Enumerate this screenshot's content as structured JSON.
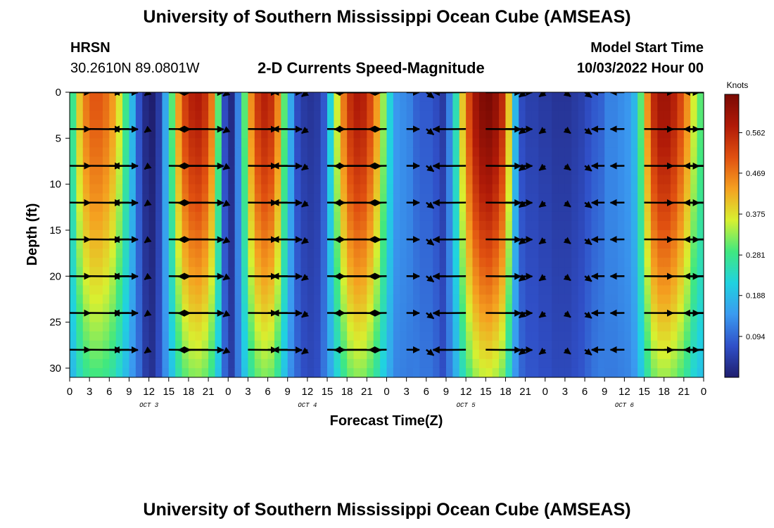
{
  "header": {
    "title": "University of Southern Mississippi Ocean Cube (AMSEAS)",
    "station": "HRSN",
    "coords": "30.2610N  89.0801W",
    "subtitle": "2-D Currents Speed-Magnitude",
    "model_start_label": "Model Start Time",
    "model_start_value": "10/03/2022 Hour 00",
    "footer_title": "University of Southern Mississippi Ocean Cube (AMSEAS)"
  },
  "chart_data": {
    "type": "heatmap",
    "title": "2-D Currents Speed-Magnitude",
    "xlabel": "Forecast Time(Z)",
    "ylabel": "Depth (ft)",
    "xlim": [
      0,
      96
    ],
    "ylim": [
      31,
      0
    ],
    "x_tick_labels": [
      "0",
      "3",
      "6",
      "9",
      "12",
      "15",
      "18",
      "21",
      "0",
      "3",
      "6",
      "9",
      "12",
      "15",
      "18",
      "21",
      "0",
      "3",
      "6",
      "9",
      "12",
      "15",
      "18",
      "21",
      "0",
      "3",
      "6",
      "9",
      "12",
      "15",
      "18",
      "21",
      "0"
    ],
    "y_ticks": [
      0,
      5,
      10,
      15,
      20,
      25,
      30
    ],
    "day_labels": [
      {
        "text": "OCT 3",
        "hour": 12
      },
      {
        "text": "OCT 4",
        "hour": 36
      },
      {
        "text": "OCT 5",
        "hour": 60
      },
      {
        "text": "OCT 6",
        "hour": 84
      }
    ],
    "colorbar": {
      "unit": "Knots",
      "ticks": [
        0.562,
        0.469,
        0.375,
        0.281,
        0.188,
        0.094
      ],
      "range": [
        0.0,
        0.65
      ],
      "colors": [
        "#1f1e6e",
        "#3050c8",
        "#3a9af0",
        "#20d2e0",
        "#40e880",
        "#d8f030",
        "#f5a020",
        "#e05010",
        "#b01a08",
        "#7a0a04"
      ]
    },
    "speed_by_hour_surface": [
      0.28,
      0.4,
      0.47,
      0.5,
      0.5,
      0.48,
      0.44,
      0.37,
      0.28,
      0.18,
      0.09,
      0.02,
      0.0,
      0.05,
      0.16,
      0.3,
      0.44,
      0.53,
      0.57,
      0.58,
      0.55,
      0.47,
      0.3,
      0.08,
      0.02,
      0.12,
      0.3,
      0.45,
      0.54,
      0.57,
      0.55,
      0.46,
      0.3,
      0.16,
      0.08,
      0.05,
      0.04,
      0.05,
      0.1,
      0.22,
      0.36,
      0.47,
      0.55,
      0.58,
      0.57,
      0.52,
      0.44,
      0.33,
      0.22,
      0.14,
      0.13,
      0.12,
      0.11,
      0.1,
      0.1,
      0.08,
      0.05,
      0.12,
      0.25,
      0.4,
      0.52,
      0.6,
      0.64,
      0.65,
      0.62,
      0.56,
      0.4,
      0.18,
      0.08,
      0.06,
      0.06,
      0.05,
      0.05,
      0.04,
      0.04,
      0.04,
      0.05,
      0.06,
      0.08,
      0.1,
      0.11,
      0.12,
      0.12,
      0.13,
      0.14,
      0.18,
      0.3,
      0.45,
      0.56,
      0.6,
      0.6,
      0.57,
      0.52,
      0.45,
      0.36,
      0.3,
      0.26
    ],
    "current_vectors": {
      "depths_ft": [
        0,
        4,
        8,
        12,
        16,
        20,
        24,
        28
      ],
      "sample_hours": [
        0,
        3,
        6,
        9,
        12,
        15,
        18,
        21,
        24,
        27,
        30,
        33,
        36,
        39,
        42,
        45,
        48,
        51,
        54,
        57,
        60,
        63,
        66,
        69,
        72,
        75,
        78,
        81,
        84,
        87,
        90,
        93,
        96
      ],
      "direction_pattern": "eastward on flood, westward on ebb; dominantly horizontal"
    }
  }
}
